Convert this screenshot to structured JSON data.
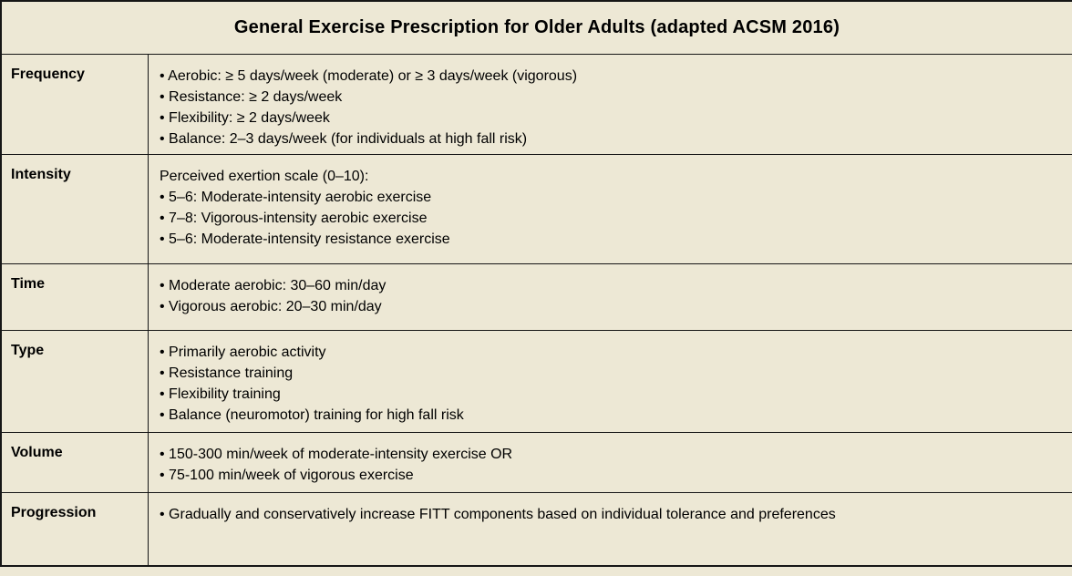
{
  "page": {
    "background_color": "#EDE8D5",
    "border_color": "#161616",
    "text_color": "#000000"
  },
  "table": {
    "title": "General Exercise Prescription for Older Adults (adapted ACSM 2016)",
    "rows": [
      {
        "label": "Frequency",
        "lines": [
          "• Aerobic: ≥ 5 days/week (moderate) or ≥ 3 days/week (vigorous)",
          "• Resistance: ≥ 2 days/week",
          "• Flexibility: ≥ 2 days/week",
          "• Balance: 2–3 days/week (for individuals at high fall risk)"
        ]
      },
      {
        "label": "Intensity",
        "lines": [
          "Perceived exertion scale (0–10):",
          "• 5–6: Moderate-intensity aerobic exercise",
          "• 7–8: Vigorous-intensity aerobic exercise",
          "• 5–6: Moderate-intensity resistance exercise"
        ]
      },
      {
        "label": "Time",
        "lines": [
          "• Moderate aerobic: 30–60 min/day",
          "• Vigorous aerobic: 20–30 min/day"
        ]
      },
      {
        "label": "Type",
        "lines": [
          "• Primarily aerobic activity",
          "• Resistance training",
          "• Flexibility training",
          "• Balance (neuromotor) training for high fall risk"
        ]
      },
      {
        "label": "Volume",
        "lines": [
          "• 150-300 min/week of moderate-intensity exercise OR",
          "• 75-100 min/week of vigorous exercise"
        ]
      },
      {
        "label": "Progression",
        "lines": [
          "• Gradually and conservatively increase FITT components based on individual tolerance and preferences"
        ]
      }
    ]
  }
}
